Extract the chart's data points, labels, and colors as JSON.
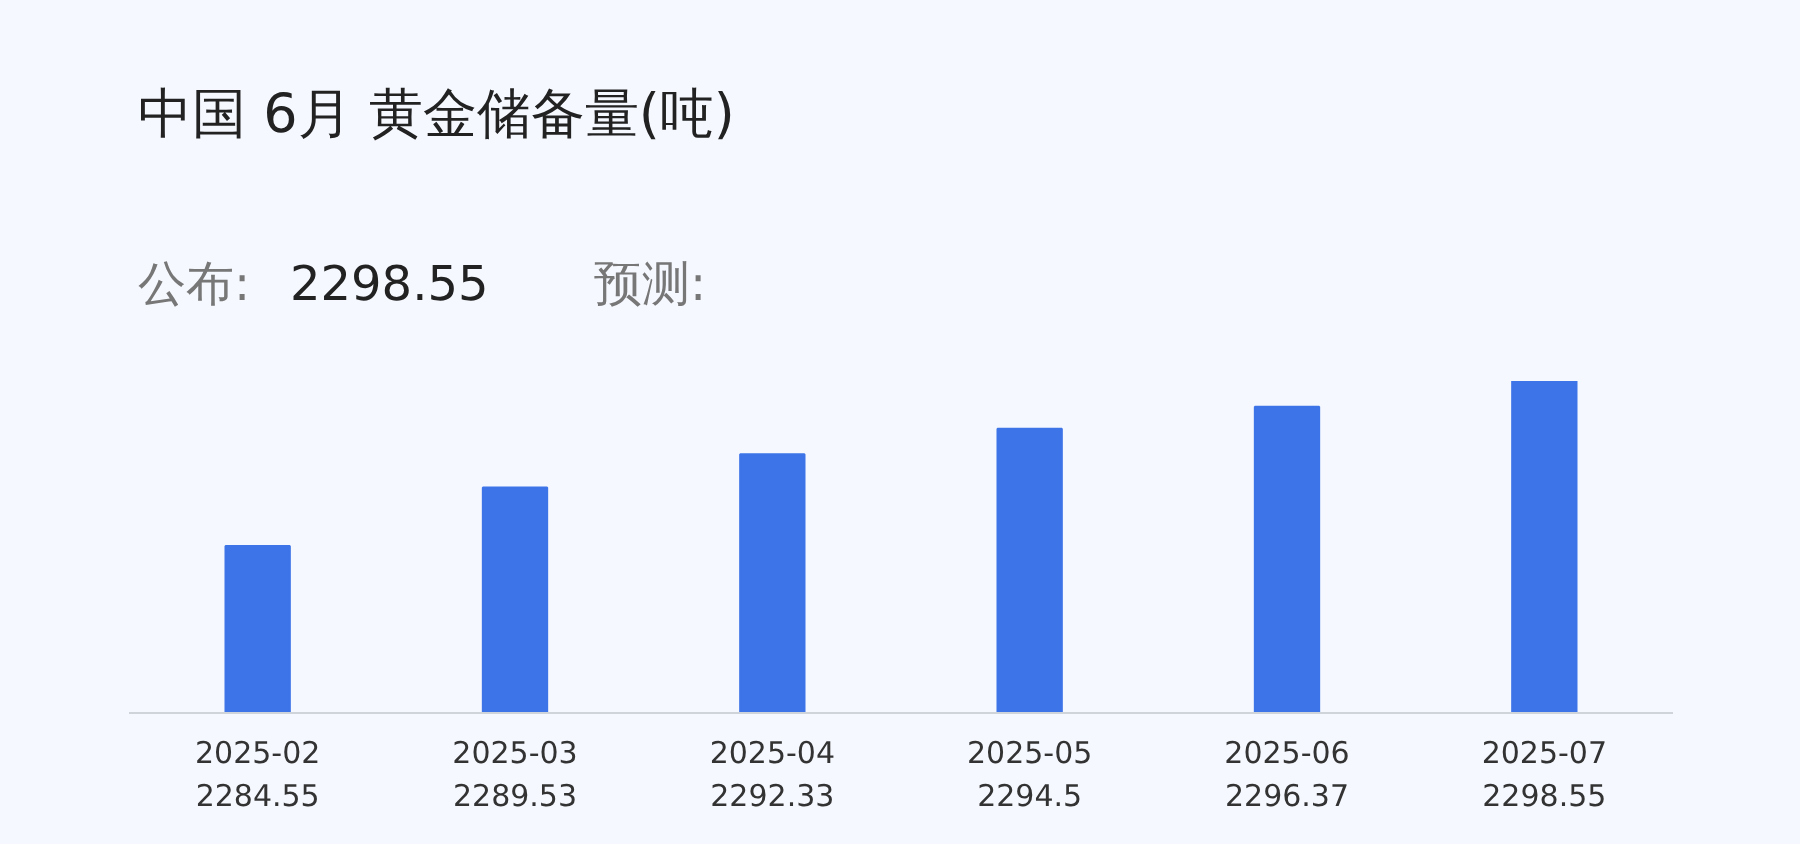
{
  "chart_data": {
    "type": "bar",
    "title": "中国 6月 黄金储备量(吨)",
    "annotations": [
      "公布:",
      "2298.55",
      "预测:"
    ],
    "categories": [
      "2025-02",
      "2025-03",
      "2025-04",
      "2025-05",
      "2025-06",
      "2025-07"
    ],
    "values": [
      2284.55,
      2289.53,
      2292.33,
      2294.5,
      2296.37,
      2298.55
    ],
    "color": "#3d74e8",
    "ylim": [
      2270.4,
      2298.55
    ],
    "data_labels": true,
    "tick_labels": "x",
    "grid": false
  }
}
